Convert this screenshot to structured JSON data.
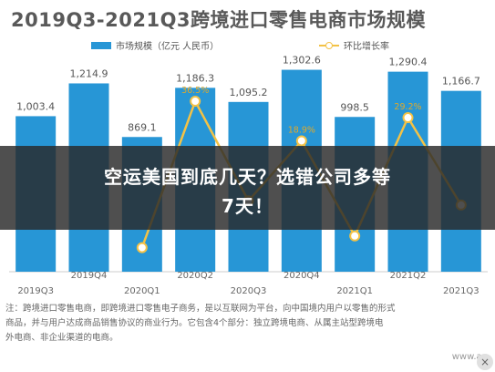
{
  "chart_data": {
    "type": "bar",
    "title": "2019Q3-2021Q3跨境进口零售电商市场规模",
    "categories": [
      "2019Q3",
      "2019Q4",
      "2020Q1",
      "2020Q2",
      "2020Q3",
      "2020Q4",
      "2021Q1",
      "2021Q2",
      "2021Q3"
    ],
    "series": [
      {
        "name": "市场规模（亿元 人民币）",
        "type": "bar",
        "values": [
          1003.4,
          1214.9,
          869.1,
          1186.3,
          1095.2,
          1302.6,
          998.5,
          1290.4,
          1166.7
        ],
        "labels": [
          "1,003.4",
          "1,214.9",
          "869.1",
          "1,186.3",
          "1,095.2",
          "1,302.6",
          "998.5",
          "1,290.4",
          "1,166.7"
        ],
        "color": "#2796d6"
      },
      {
        "name": "环比增长率",
        "type": "line",
        "values": [
          null,
          null,
          -28.5,
          36.5,
          -7.7,
          18.9,
          -23.3,
          29.2,
          -9.6
        ],
        "labels": [
          "",
          "",
          "",
          "36.5%",
          "",
          "18.9%",
          "",
          "29.2%",
          ""
        ],
        "color": "#f3c246"
      }
    ],
    "ylim": [
      0,
      1400
    ],
    "ylim_right": [
      -40,
      45
    ]
  },
  "legend": {
    "bar_label": "市场规模（亿元 人民币）",
    "line_label": "环比增长率"
  },
  "note": {
    "line1": "注：跨境进口零售电商，即跨境进口零售电子商务，是以互联网为平台，向中国境内用户以零售的形式",
    "line2": "商品，并与用户达成商品销售协议的商业行为。它包含4个部分：独立跨境电商、从属主站型跨境电",
    "line3": "外电商、非企业渠道的电商。"
  },
  "banner": {
    "line1": "空运美国到底几天？选错公司多等",
    "line2": "7天！"
  },
  "watermark": "www.an",
  "close_glyph": "×"
}
